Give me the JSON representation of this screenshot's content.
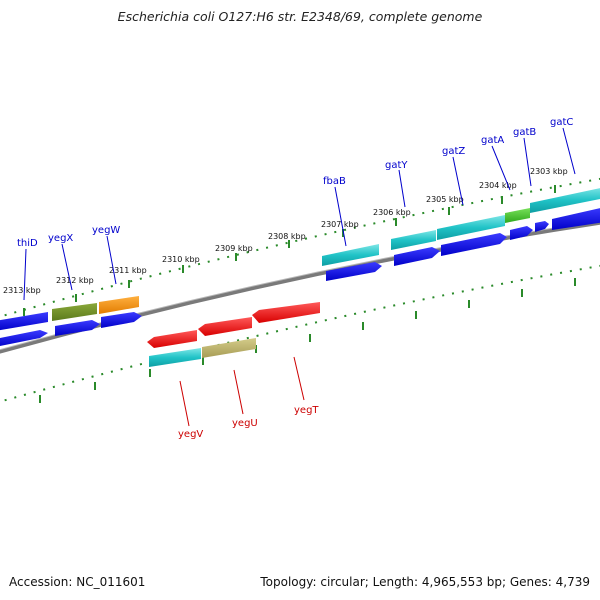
{
  "title": "Escherichia coli O127:H6 str. E2348/69, complete genome",
  "footer": {
    "accession": "Accession: NC_011601",
    "summary": "Topology: circular; Length: 4,965,553 bp; Genes: 4,739"
  },
  "colors": {
    "forward_label": "#0000cc",
    "reverse_label": "#cc0000",
    "backbone": "#808080",
    "tick": "#2a8a2a"
  },
  "kbp_labels": [
    "2313 kbp",
    "2312 kbp",
    "2311 kbp",
    "2310 kbp",
    "2309 kbp",
    "2308 kbp",
    "2307 kbp",
    "2306 kbp",
    "2305 kbp",
    "2304 kbp",
    "2303 kbp"
  ],
  "genes": {
    "forward": [
      "thiD",
      "yegX",
      "yegW",
      "fbaB",
      "gatY",
      "gatZ",
      "gatA",
      "gatB",
      "gatC"
    ],
    "reverse": [
      "yegV",
      "yegU",
      "yegT"
    ]
  }
}
